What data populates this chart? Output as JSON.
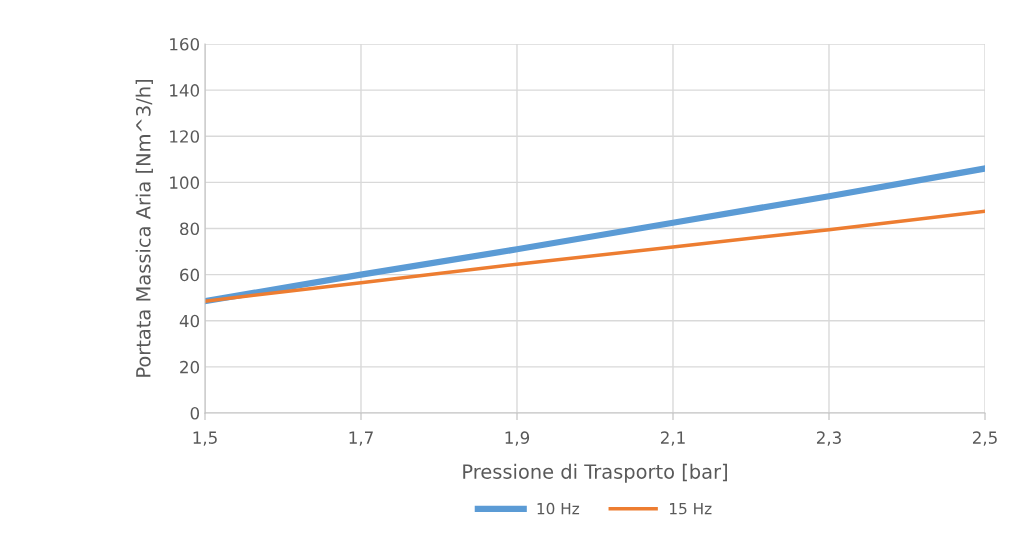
{
  "chart_data": {
    "type": "line",
    "xlabel": "Pressione di Trasporto [bar]",
    "ylabel": "Portata Massica Aria [Nm^3/h]",
    "x": [
      1.5,
      1.7,
      1.9,
      2.1,
      2.3,
      2.5
    ],
    "series": [
      {
        "name": "10 Hz",
        "color": "#5b9bd5",
        "values": [
          48.5,
          60,
          71,
          82.5,
          94,
          106
        ]
      },
      {
        "name": "15 Hz",
        "color": "#ed7d31",
        "values": [
          48.5,
          56.5,
          64.5,
          72,
          79.5,
          87.5
        ]
      }
    ],
    "xlim": [
      1.5,
      2.5
    ],
    "ylim": [
      0,
      160
    ],
    "xticks": [
      {
        "value": 1.5,
        "label": "1,5"
      },
      {
        "value": 1.7,
        "label": "1,7"
      },
      {
        "value": 1.9,
        "label": "1,9"
      },
      {
        "value": 2.1,
        "label": "2,1"
      },
      {
        "value": 2.3,
        "label": "2,3"
      },
      {
        "value": 2.5,
        "label": "2,5"
      }
    ],
    "yticks": [
      0,
      20,
      40,
      60,
      80,
      100,
      120,
      140,
      160
    ],
    "grid": true,
    "legend": "bottom",
    "marker": "none",
    "line_style": "solid"
  }
}
